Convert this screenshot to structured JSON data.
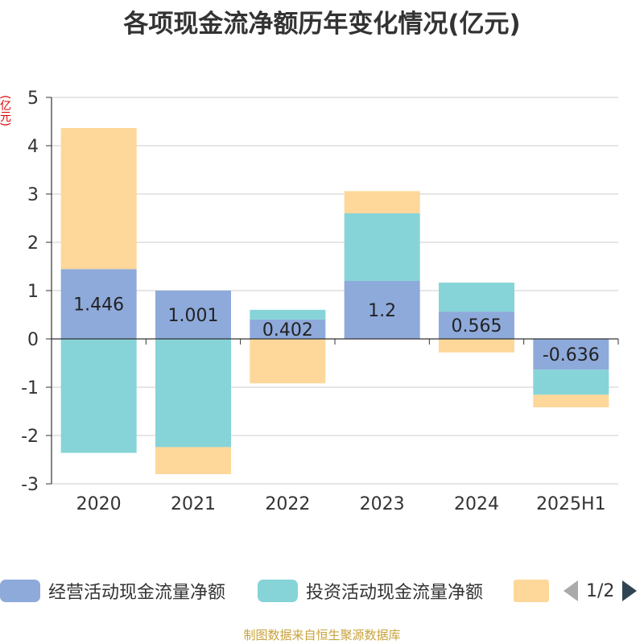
{
  "chart_data": {
    "type": "bar",
    "stacked": true,
    "title": "各项现金流净额历年变化情况(亿元)",
    "ylabel": "(亿元)",
    "categories": [
      "2020",
      "2021",
      "2022",
      "2023",
      "2024",
      "2025H1"
    ],
    "ylim": [
      -3,
      5
    ],
    "yticks": [
      "5",
      "4",
      "3",
      "2",
      "1",
      "0",
      "-1",
      "-2",
      "-3"
    ],
    "grid": true,
    "legend_position": "bottom",
    "series": [
      {
        "name": "经营活动现金流量净额",
        "color": "#8eaadb",
        "values": [
          1.446,
          1.001,
          0.402,
          1.2,
          0.565,
          -0.636
        ]
      },
      {
        "name": "投资活动现金流量净额",
        "color": "#86d4d8",
        "values": [
          -2.36,
          -2.24,
          0.2,
          1.4,
          0.6,
          -0.52
        ]
      },
      {
        "name": "",
        "color": "#fdd89a",
        "values": [
          2.92,
          -0.56,
          -0.92,
          0.46,
          -0.28,
          -0.26
        ]
      }
    ],
    "data_labels": [
      "1.446",
      "1.001",
      "0.402",
      "1.2",
      "0.565",
      "-0.636"
    ]
  },
  "legend": {
    "items": [
      {
        "label": "经营活动现金流量净额",
        "color": "#8eaadb"
      },
      {
        "label": "投资活动现金流量净额",
        "color": "#86d4d8"
      },
      {
        "label": "",
        "color": "#fdd89a"
      }
    ],
    "page_indicator": "1/2"
  },
  "source": "制图数据来自恒生聚源数据库"
}
